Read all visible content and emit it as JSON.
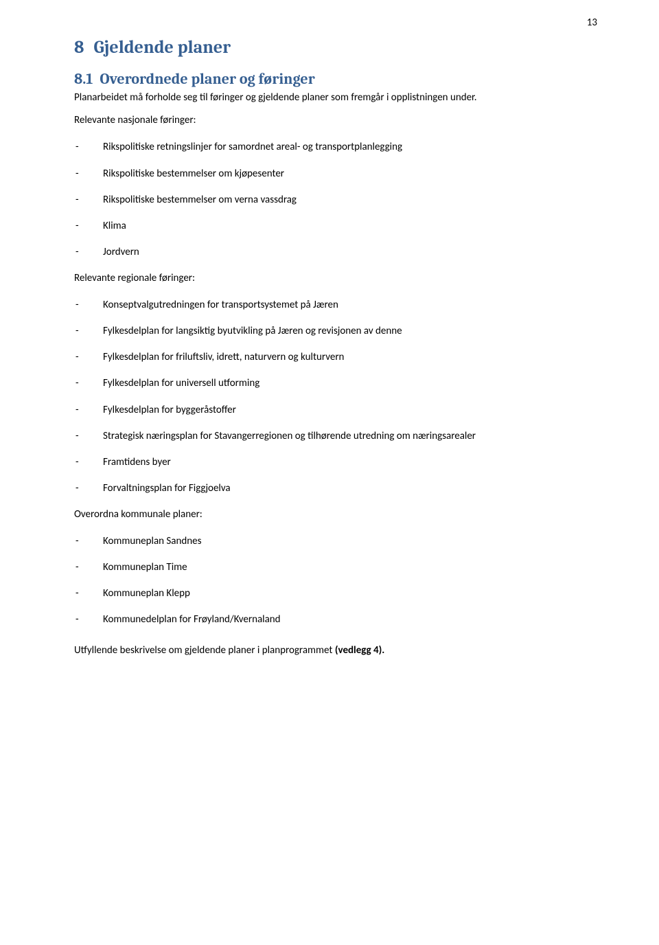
{
  "page": {
    "number": "13"
  },
  "heading": {
    "num": "8",
    "title": "Gjeldende planer"
  },
  "sub": {
    "num": "8.1",
    "title": "Overordnede planer og føringer"
  },
  "intro": "Planarbeidet må forholde seg til føringer og gjeldende planer som fremgår i opplistningen under.",
  "sections": {
    "national": {
      "label": "Relevante nasjonale føringer:",
      "items": [
        "Rikspolitiske retningslinjer for samordnet areal- og transportplanlegging",
        "Rikspolitiske bestemmelser om kjøpesenter",
        "Rikspolitiske bestemmelser om verna vassdrag",
        "Klima",
        "Jordvern"
      ]
    },
    "regional": {
      "label": "Relevante regionale føringer:",
      "items": [
        "Konseptvalgutredningen for transportsystemet på Jæren",
        "Fylkesdelplan for langsiktig byutvikling på Jæren og revisjonen av denne",
        "Fylkesdelplan for friluftsliv, idrett, naturvern og kulturvern",
        "Fylkesdelplan for universell utforming",
        "Fylkesdelplan for byggeråstoffer",
        "Strategisk næringsplan for Stavangerregionen og tilhørende utredning om næringsarealer",
        "Framtidens byer",
        "Forvaltningsplan for Figgjoelva"
      ]
    },
    "municipal": {
      "label": "Overordna kommunale planer:",
      "items": [
        "Kommuneplan Sandnes",
        "Kommuneplan Time",
        "Kommuneplan Klepp",
        "Kommunedelplan for Frøyland/Kvernaland"
      ]
    }
  },
  "footer": {
    "pre": "Utfyllende beskrivelse om gjeldende planer i planprogrammet ",
    "strong": "(vedlegg 4)."
  },
  "colors": {
    "heading": "#365f91",
    "text": "#000000",
    "background": "#ffffff"
  }
}
